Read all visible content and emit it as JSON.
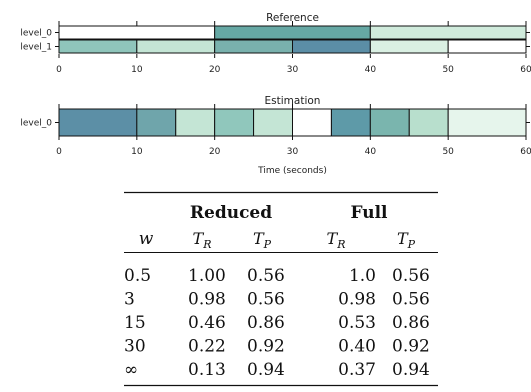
{
  "chart_data": [
    {
      "type": "timeline",
      "title": "Reference",
      "xlabel": "",
      "xlim": [
        0,
        60
      ],
      "xticks": [
        0,
        10,
        20,
        30,
        40,
        50,
        60
      ],
      "rows": [
        {
          "label": "level_0",
          "segments": [
            {
              "start": 0,
              "end": 20,
              "color": "#ffffff"
            },
            {
              "start": 20,
              "end": 40,
              "color": "#66a8a4"
            },
            {
              "start": 40,
              "end": 60,
              "color": "#d0ebdc"
            }
          ]
        },
        {
          "label": "level_1",
          "segments": [
            {
              "start": 0,
              "end": 10,
              "color": "#8fc5bb"
            },
            {
              "start": 10,
              "end": 20,
              "color": "#c4e5d5"
            },
            {
              "start": 20,
              "end": 30,
              "color": "#79b1ad"
            },
            {
              "start": 30,
              "end": 40,
              "color": "#5b8ea6"
            },
            {
              "start": 40,
              "end": 50,
              "color": "#daf0e3"
            },
            {
              "start": 50,
              "end": 60,
              "color": "#ffffff"
            }
          ]
        }
      ]
    },
    {
      "type": "timeline",
      "title": "Estimation",
      "xlabel": "Time (seconds)",
      "xlim": [
        0,
        60
      ],
      "xticks": [
        0,
        10,
        20,
        30,
        40,
        50,
        60
      ],
      "rows": [
        {
          "label": "level_0",
          "segments": [
            {
              "start": 0,
              "end": 10,
              "color": "#5c8fa6"
            },
            {
              "start": 10,
              "end": 15,
              "color": "#6fa5ab"
            },
            {
              "start": 15,
              "end": 20,
              "color": "#c4e5d5"
            },
            {
              "start": 20,
              "end": 25,
              "color": "#90c7bc"
            },
            {
              "start": 25,
              "end": 30,
              "color": "#c4e5d5"
            },
            {
              "start": 30,
              "end": 35,
              "color": "#ffffff"
            },
            {
              "start": 35,
              "end": 40,
              "color": "#5e9aa8"
            },
            {
              "start": 40,
              "end": 45,
              "color": "#7ab5ae"
            },
            {
              "start": 45,
              "end": 50,
              "color": "#b8dfcd"
            },
            {
              "start": 50,
              "end": 60,
              "color": "#e6f5ec"
            }
          ]
        }
      ]
    },
    {
      "type": "table",
      "group_headers": [
        "Reduced",
        "Full"
      ],
      "columns": [
        "w",
        "T_R",
        "T_P",
        "T_R",
        "T_P"
      ],
      "rows": [
        [
          "0.5",
          "1.00",
          "0.56",
          "1.0",
          "0.56"
        ],
        [
          "3",
          "0.98",
          "0.56",
          "0.98",
          "0.56"
        ],
        [
          "15",
          "0.46",
          "0.86",
          "0.53",
          "0.86"
        ],
        [
          "30",
          "0.22",
          "0.92",
          "0.40",
          "0.92"
        ],
        [
          "∞",
          "0.13",
          "0.94",
          "0.37",
          "0.94"
        ]
      ]
    }
  ]
}
